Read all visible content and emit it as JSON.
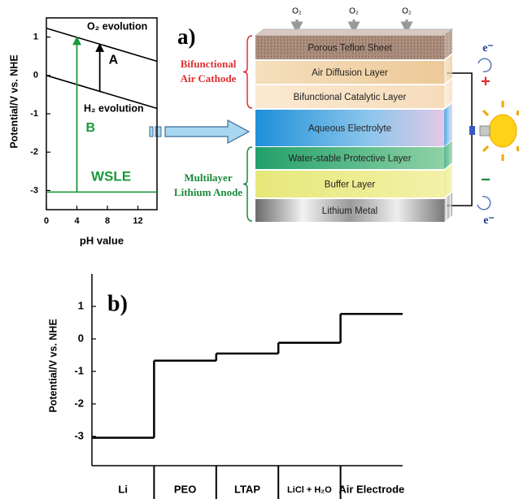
{
  "chart_data": [
    {
      "type": "line",
      "xlabel": "pH value",
      "ylabel": "Potential/V vs. NHE",
      "x": [
        0,
        14.5
      ],
      "series": [
        {
          "name": "O₂ evolution",
          "color": "#000000",
          "values": [
            1.23,
            0.37
          ]
        },
        {
          "name": "H₂ evolution",
          "color": "#000000",
          "values": [
            0,
            -0.86
          ]
        },
        {
          "name": "WSLE",
          "color": "#1a9a3a",
          "values": [
            -3.04,
            -3.04
          ]
        }
      ],
      "annotations": [
        {
          "text": "A",
          "x": 7,
          "y": [
            -0.41,
            0.82
          ],
          "color": "#000000"
        },
        {
          "text": "B",
          "x": 4,
          "y": [
            -3.04,
            1.0
          ],
          "color": "#1a9a3a"
        }
      ],
      "xlim": [
        0,
        14.5
      ],
      "ylim": [
        -3.5,
        1.5
      ],
      "xticks": [
        0,
        4,
        8,
        12
      ],
      "yticks": [
        1,
        0,
        -1,
        -2,
        -3
      ]
    },
    {
      "type": "step",
      "panel_label": "b)",
      "ylabel": "Potential/V vs. NHE",
      "categories": [
        "Li",
        "PEO",
        "LTAP",
        "LiCl + H₂O",
        "Air Electrode"
      ],
      "values": [
        -3.04,
        -0.67,
        -0.45,
        -0.12,
        0.77
      ],
      "color": "#000000",
      "ylim": [
        -3.9,
        2.0
      ],
      "yticks": [
        1,
        0,
        -1,
        -2,
        -3
      ]
    }
  ],
  "diagram": {
    "panel_label": "a)",
    "oxygen_labels": [
      "O₂",
      "O₂",
      "O₂"
    ],
    "layers": [
      "Porous Teflon Sheet",
      "Air Diffusion Layer",
      "Bifunctional Catalytic Layer",
      "Aqueous Electrolyte",
      "Water-stable Protective Layer",
      "Buffer Layer",
      "Lithium Metal"
    ],
    "groups": [
      {
        "label": [
          "Bifunctional",
          "Air Cathode"
        ],
        "color": "#e03030"
      },
      {
        "label": [
          "Multilayer",
          "Lithium Anode"
        ],
        "color": "#1a8a3a"
      }
    ],
    "electrons": [
      "e⁻",
      "e⁻"
    ],
    "terminals": [
      "+",
      "−"
    ]
  }
}
